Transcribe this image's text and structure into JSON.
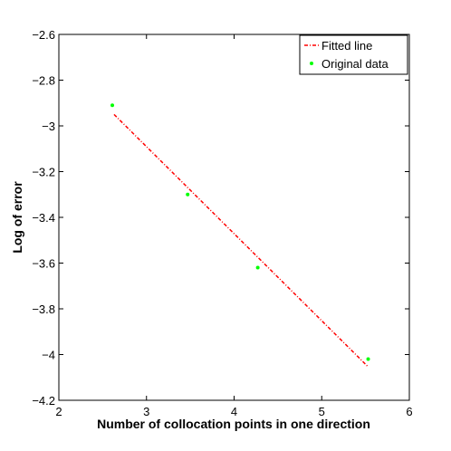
{
  "chart_data": {
    "type": "scatter",
    "title": "",
    "xlabel": "Number of collocation points in one direction",
    "ylabel": "Log of error",
    "xlim": [
      2,
      6
    ],
    "ylim": [
      -4.2,
      -2.6
    ],
    "xticks": [
      2,
      3,
      4,
      5,
      6
    ],
    "yticks": [
      -4.2,
      -4,
      -3.8,
      -3.6,
      -3.4,
      -3.2,
      -3,
      -2.8,
      -2.6
    ],
    "xtick_labels": [
      "2",
      "3",
      "4",
      "5",
      "6"
    ],
    "ytick_labels": [
      "−4.2",
      "−4",
      "−3.8",
      "−3.6",
      "−3.4",
      "−3.2",
      "−3",
      "−2.8",
      "−2.6"
    ],
    "grid": false,
    "legend_position": "top-right",
    "series": [
      {
        "name": "Fitted line",
        "kind": "line",
        "style": "dash-dot",
        "color": "#ff0000",
        "x": [
          2.63,
          5.52
        ],
        "y": [
          -2.95,
          -4.05
        ]
      },
      {
        "name": "Original data",
        "kind": "markers",
        "color": "#00ff00",
        "x": [
          2.61,
          3.47,
          4.27,
          5.53
        ],
        "y": [
          -2.91,
          -3.3,
          -3.62,
          -4.02
        ]
      }
    ]
  }
}
